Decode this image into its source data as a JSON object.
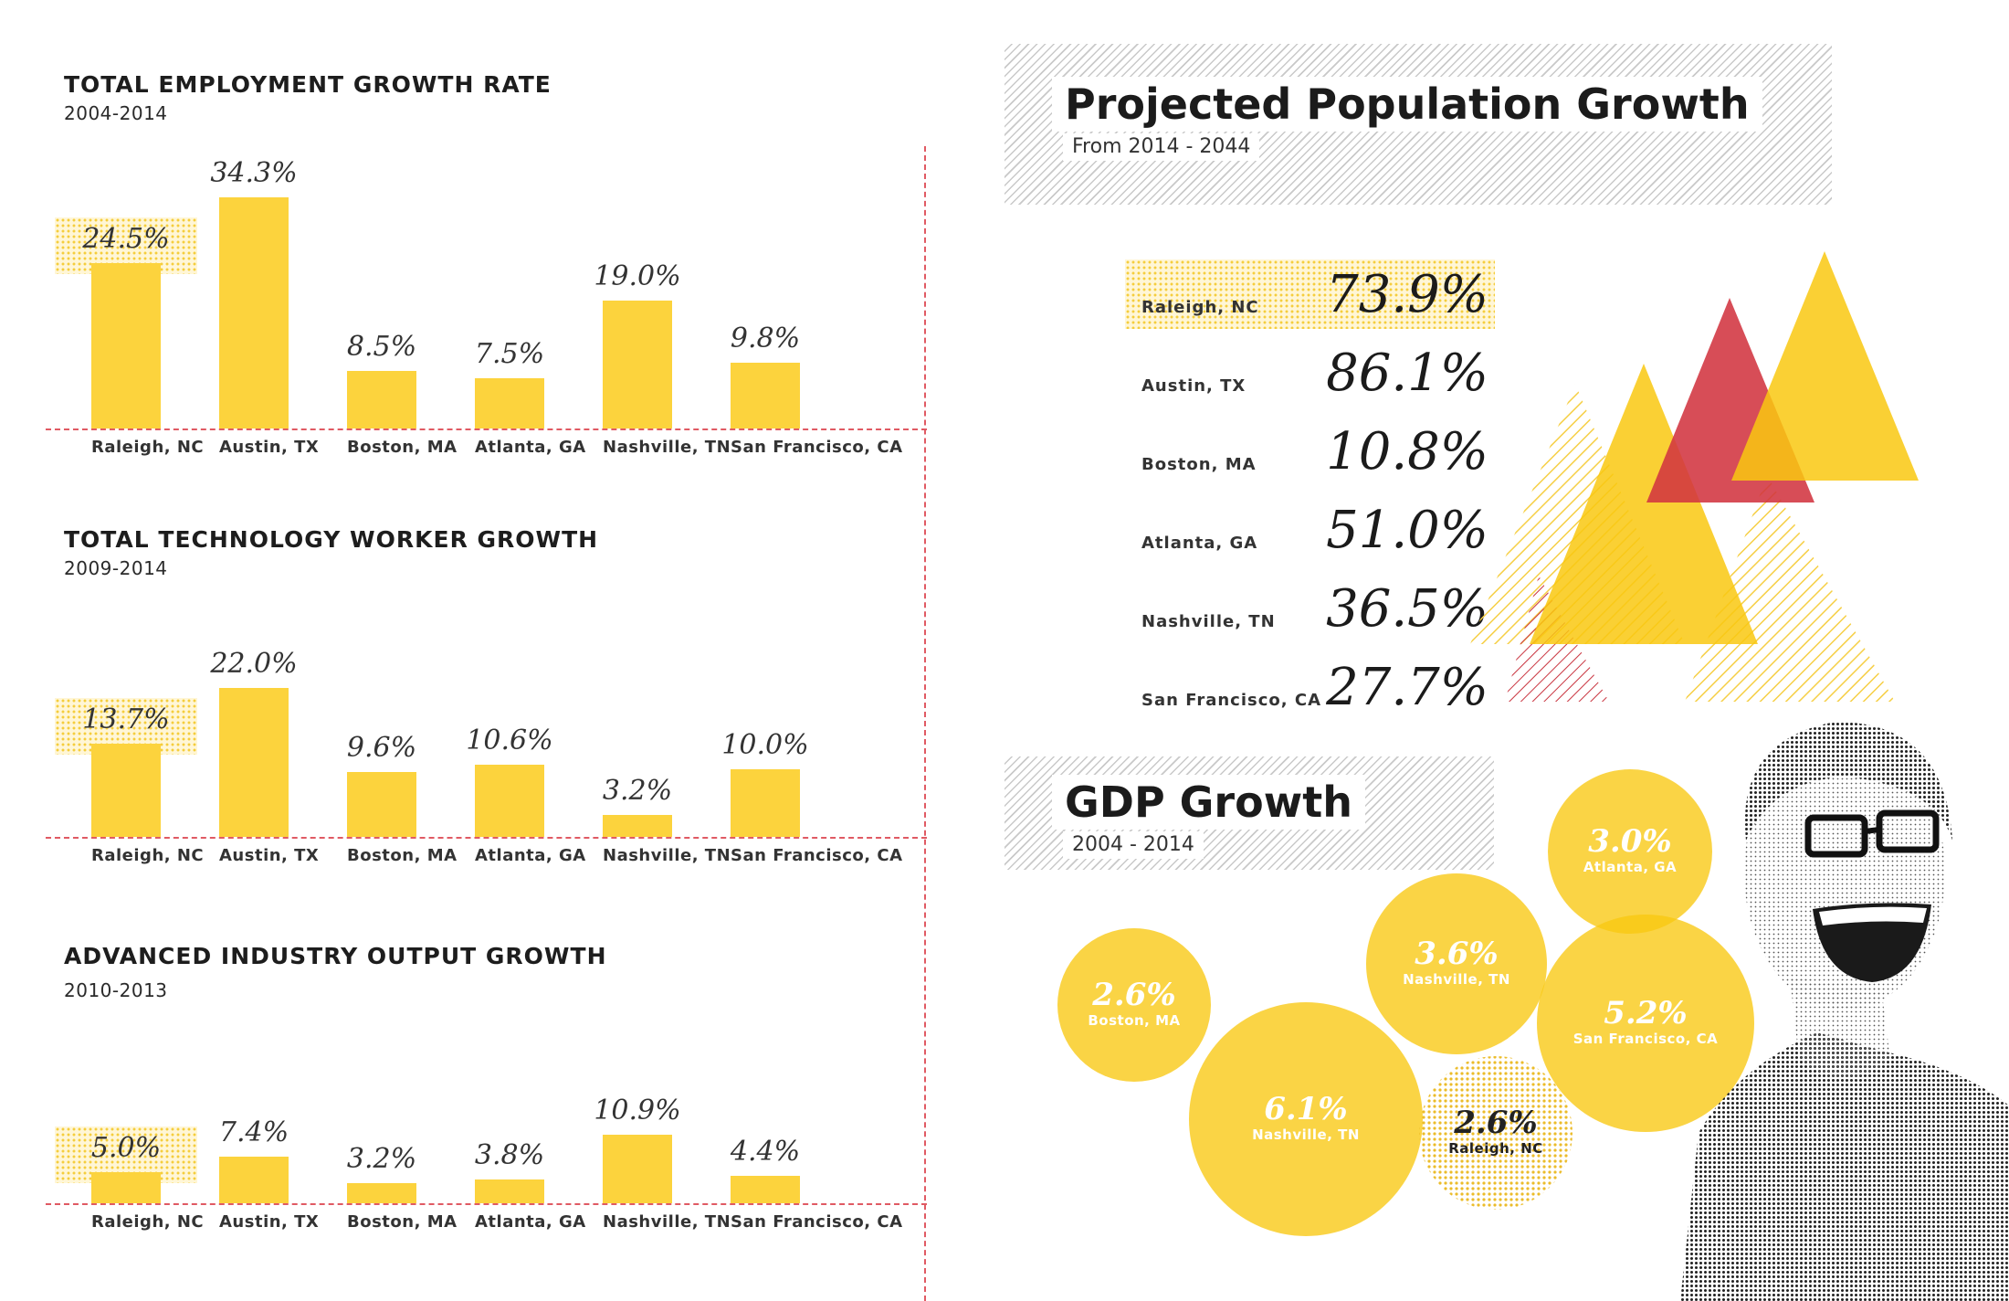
{
  "colors": {
    "bar": "#fcd33d",
    "accent_red": "#d23440",
    "dashed": "#e05a63"
  },
  "chart_data": [
    {
      "type": "bar",
      "title": "TOTAL EMPLOYMENT GROWTH RATE",
      "subtitle": "2004-2014",
      "categories": [
        "Raleigh, NC",
        "Austin, TX",
        "Boston, MA",
        "Atlanta, GA",
        "Nashville, TN",
        "San Francisco, CA"
      ],
      "values": [
        24.5,
        34.3,
        8.5,
        7.5,
        19.0,
        9.8
      ],
      "labels": [
        "24.5%",
        "34.3%",
        "8.5%",
        "7.5%",
        "19.0%",
        "9.8%"
      ],
      "highlight": "Raleigh, NC",
      "ylim": [
        0,
        34.3
      ]
    },
    {
      "type": "bar",
      "title": "TOTAL TECHNOLOGY WORKER GROWTH",
      "subtitle": "2009-2014",
      "categories": [
        "Raleigh, NC",
        "Austin, TX",
        "Boston, MA",
        "Atlanta, GA",
        "Nashville, TN",
        "San Francisco, CA"
      ],
      "values": [
        13.7,
        22.0,
        9.6,
        10.6,
        3.2,
        10.0
      ],
      "labels": [
        "13.7%",
        "22.0%",
        "9.6%",
        "10.6%",
        "3.2%",
        "10.0%"
      ],
      "highlight": "Raleigh, NC",
      "ylim": [
        0,
        22.0
      ]
    },
    {
      "type": "bar",
      "title": "ADVANCED INDUSTRY OUTPUT GROWTH",
      "subtitle": "2010-2013",
      "categories": [
        "Raleigh, NC",
        "Austin, TX",
        "Boston, MA",
        "Atlanta, GA",
        "Nashville, TN",
        "San Francisco, CA"
      ],
      "values": [
        5.0,
        7.4,
        3.2,
        3.8,
        10.9,
        4.4
      ],
      "labels": [
        "5.0%",
        "7.4%",
        "3.2%",
        "3.8%",
        "10.9%",
        "4.4%"
      ],
      "highlight": "Raleigh, NC",
      "ylim": [
        0,
        10.9
      ]
    },
    {
      "type": "table",
      "title": "Projected Population Growth",
      "subtitle": "From 2014 - 2044",
      "rows": [
        {
          "city": "Raleigh, NC",
          "value": "73.9%"
        },
        {
          "city": "Austin, TX",
          "value": "86.1%"
        },
        {
          "city": "Boston, MA",
          "value": "10.8%"
        },
        {
          "city": "Atlanta, GA",
          "value": "51.0%"
        },
        {
          "city": "Nashville, TN",
          "value": "36.5%"
        },
        {
          "city": "San Francisco, CA",
          "value": "27.7%"
        }
      ],
      "highlight": "Raleigh, NC"
    },
    {
      "type": "scatter",
      "title": "GDP Growth",
      "subtitle": "2004 - 2014",
      "bubbles": [
        {
          "city": "Atlanta, GA",
          "value": 3.0,
          "label": "3.0%"
        },
        {
          "city": "Nashville, TN",
          "value": 3.6,
          "label": "3.6%"
        },
        {
          "city": "Boston, MA",
          "value": 2.6,
          "label": "2.6%"
        },
        {
          "city": "San Francisco, CA",
          "value": 5.2,
          "label": "5.2%"
        },
        {
          "city": "Nashville, TN",
          "value": 6.1,
          "label": "6.1%"
        },
        {
          "city": "Raleigh, NC",
          "value": 2.6,
          "label": "2.6%"
        }
      ]
    }
  ]
}
